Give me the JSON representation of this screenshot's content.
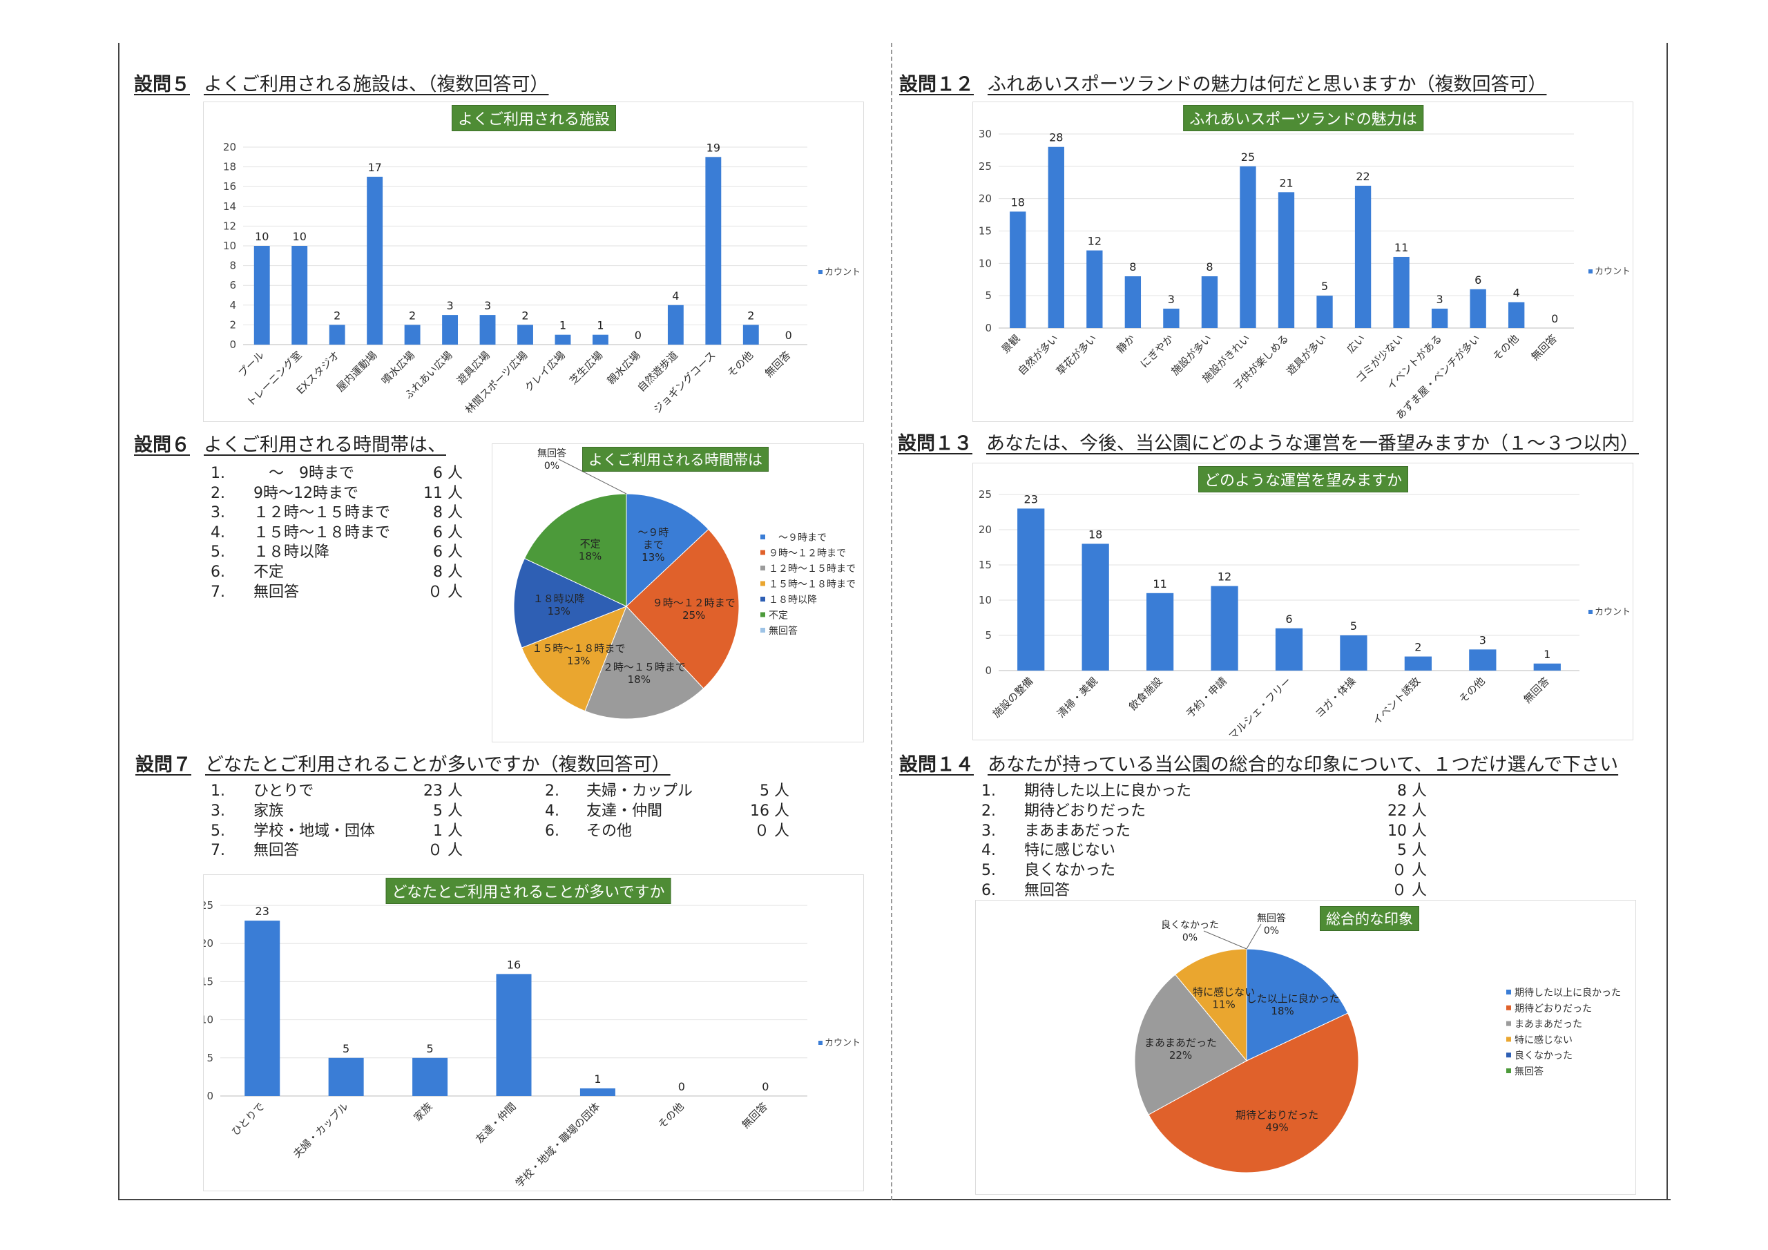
{
  "q5": {
    "num": "設問５",
    "title": "よくご利用される施設は、（複数回答可）"
  },
  "q12": {
    "num": "設問１２",
    "title": "ふれあいスポーツランドの魅力は何だと思いますか（複数回答可）"
  },
  "q6": {
    "num": "設問６",
    "title": "よくご利用される時間帯は、",
    "items": [
      {
        "n": "1.",
        "label": "　～　9時まで",
        "value": "6 人"
      },
      {
        "n": "2.",
        "label": "9時～12時まで",
        "value": "11 人"
      },
      {
        "n": "3.",
        "label": "１２時～１５時まで",
        "value": "8 人"
      },
      {
        "n": "4.",
        "label": "１５時～１８時まで",
        "value": "6 人"
      },
      {
        "n": "5.",
        "label": "１８時以降",
        "value": "6 人"
      },
      {
        "n": "6.",
        "label": "不定",
        "value": "8 人"
      },
      {
        "n": "7.",
        "label": "無回答",
        "value": "０ 人"
      }
    ]
  },
  "q13": {
    "num": "設問１３",
    "title": "あなたは、今後、当公園にどのような運営を一番望みますか（１～３つ以内）"
  },
  "q7": {
    "num": "設問７",
    "title": "どなたとご利用されることが多いですか（複数回答可）",
    "items": [
      {
        "n": "1.",
        "label": "ひとりで",
        "value": "23 人"
      },
      {
        "n": "2.",
        "label": "夫婦・カップル",
        "value": "5 人"
      },
      {
        "n": "3.",
        "label": "家族",
        "value": "5 人"
      },
      {
        "n": "4.",
        "label": "友達・仲間",
        "value": "16 人"
      },
      {
        "n": "5.",
        "label": "学校・地域・団体",
        "value": "1 人"
      },
      {
        "n": "6.",
        "label": "その他",
        "value": "０ 人"
      },
      {
        "n": "7.",
        "label": "無回答",
        "value": "０ 人"
      }
    ]
  },
  "q14": {
    "num": "設問１４",
    "title": "あなたが持っている当公園の総合的な印象について、１つだけ選んで下さい",
    "items": [
      {
        "n": "1.",
        "label": "期待した以上に良かった",
        "value": "8 人"
      },
      {
        "n": "2.",
        "label": "期待どおりだった",
        "value": "22 人"
      },
      {
        "n": "3.",
        "label": "まあまあだった",
        "value": "10 人"
      },
      {
        "n": "4.",
        "label": "特に感じない",
        "value": "5 人"
      },
      {
        "n": "5.",
        "label": "良くなかった",
        "value": "０ 人"
      },
      {
        "n": "6.",
        "label": "無回答",
        "value": "０ 人"
      }
    ]
  },
  "chart_data": [
    {
      "id": "q5",
      "type": "bar",
      "title": "よくご利用される施設",
      "categories": [
        "プール",
        "トレーニング室",
        "EXスタジオ",
        "屋内運動場",
        "噴水広場",
        "ふれあい広場",
        "遊具広場",
        "林間スポーツ広場",
        "クレイ広場",
        "芝生広場",
        "親水広場",
        "自然遊歩道",
        "ジョギングコース",
        "その他",
        "無回答"
      ],
      "values": [
        10,
        10,
        2,
        17,
        2,
        3,
        3,
        2,
        1,
        1,
        0,
        4,
        19,
        2,
        0
      ],
      "ylim": [
        0,
        20
      ],
      "yticks": [
        0,
        2,
        4,
        6,
        8,
        10,
        12,
        14,
        16,
        18,
        20
      ],
      "legend": "カウント",
      "legend_position": "right",
      "color": "#3a7dd6"
    },
    {
      "id": "q12",
      "type": "bar",
      "title": "ふれあいスポーツランドの魅力は",
      "categories": [
        "景観",
        "自然が多い",
        "草花が多い",
        "静か",
        "にぎやか",
        "施設が多い",
        "施設がきれい",
        "子供が楽しめる",
        "遊具が多い",
        "広い",
        "ゴミが少ない",
        "イベントがある",
        "あずま屋・ベンチが多い",
        "その他",
        "無回答"
      ],
      "values": [
        18,
        28,
        12,
        8,
        3,
        8,
        25,
        21,
        5,
        22,
        11,
        3,
        6,
        4,
        0
      ],
      "ylim": [
        0,
        30
      ],
      "yticks": [
        0,
        5,
        10,
        15,
        20,
        25,
        30
      ],
      "legend": "カウント",
      "legend_position": "right",
      "color": "#3a7dd6"
    },
    {
      "id": "q6",
      "type": "pie",
      "title": "よくご利用される時間帯は",
      "categories": [
        "　～９時まで",
        "９時～１２時まで",
        "１２時～１５時まで",
        "１５時～１８時まで",
        "１８時以降",
        "不定",
        "無回答"
      ],
      "slice_labels": [
        "～９時\nまで",
        "９時～１２時まで",
        "１２時～１５時まで",
        "１５時～１８時まで",
        "１８時以降",
        "不定",
        "無回答"
      ],
      "values": [
        13,
        25,
        18,
        13,
        13,
        18,
        0
      ],
      "colors": [
        "#3a7dd6",
        "#e0612b",
        "#9b9b9b",
        "#eaa62f",
        "#2e5fb4",
        "#4c9a3a",
        "#9dc3e6"
      ],
      "legend_position": "right"
    },
    {
      "id": "q13",
      "type": "bar",
      "title": "どのような運営を望みますか",
      "categories": [
        "施設の整備",
        "清掃・美観",
        "飲食施設",
        "予約・申請",
        "マルシェ・フリー",
        "ヨガ・体操",
        "イベント誘致",
        "その他",
        "無回答"
      ],
      "values": [
        23,
        18,
        11,
        12,
        6,
        5,
        2,
        3,
        1
      ],
      "ylim": [
        0,
        25
      ],
      "yticks": [
        0,
        5,
        10,
        15,
        20,
        25
      ],
      "legend": "カウント",
      "legend_position": "right",
      "color": "#3a7dd6"
    },
    {
      "id": "q7",
      "type": "bar",
      "title": "どなたとご利用されることが多いですか",
      "categories": [
        "ひとりで",
        "夫婦・カップル",
        "家族",
        "友達・仲間",
        "学校・地域・職場の団体",
        "その他",
        "無回答"
      ],
      "values": [
        23,
        5,
        5,
        16,
        1,
        0,
        0
      ],
      "ylim": [
        0,
        25
      ],
      "yticks": [
        0,
        5,
        10,
        15,
        20,
        25
      ],
      "legend": "カウント",
      "legend_position": "right",
      "color": "#3a7dd6"
    },
    {
      "id": "q14",
      "type": "pie",
      "title": "総合的な印象",
      "categories": [
        "期待した以上に良かった",
        "期待どおりだった",
        "まあまあだった",
        "特に感じない",
        "良くなかった",
        "無回答"
      ],
      "slice_labels": [
        "期待した以上に良かった",
        "期待どおりだった",
        "まあまあだった",
        "特に感じない",
        "良くなかった",
        "無回答"
      ],
      "values": [
        18,
        49,
        22,
        11,
        0,
        0
      ],
      "colors": [
        "#3a7dd6",
        "#e0612b",
        "#9b9b9b",
        "#eaa62f",
        "#2e5fb4",
        "#4c9a3a"
      ],
      "legend_position": "right"
    }
  ]
}
